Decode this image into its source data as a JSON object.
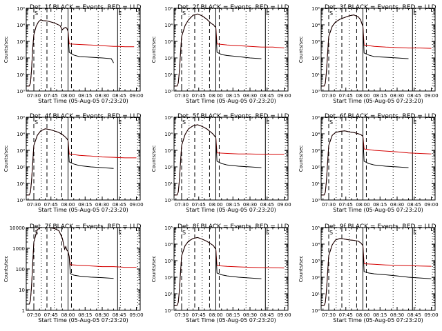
{
  "colors": {
    "events": "#000000",
    "lld": "#d40000",
    "axis": "#000000",
    "background": "#ffffff"
  },
  "common": {
    "ylabel": "Counts/sec",
    "xlabel": "Start Time (05-Aug-05 07:23:20)",
    "xticks": [
      "07:30",
      "07:45",
      "08:00",
      "08:15",
      "08:30",
      "08:45",
      "09:00"
    ],
    "xtick_minutes": [
      30,
      45,
      60,
      75,
      90,
      105,
      120
    ],
    "xlim_minutes": [
      23.33,
      123.33
    ],
    "marker_glyph": "S",
    "marker_glyph_right": "E",
    "vlines": {
      "dashed": [
        30,
        41.5,
        54.5,
        63
      ],
      "dotted": [
        36.5,
        48,
        86.5,
        106,
        121
      ],
      "solid": [
        60,
        103.5
      ]
    }
  },
  "chart_data": [
    {
      "type": "line",
      "title": "Det. 1f BLACK = Events, RED = LLD",
      "yscale": "log",
      "ylim": [
        1,
        100000
      ],
      "ytick_labels": [
        "10⁰",
        "10¹",
        "10²",
        "10³",
        "10⁴",
        "10⁵"
      ],
      "series": [
        {
          "name": "Events",
          "x": [
            23.3,
            26,
            27,
            28,
            29,
            30,
            32,
            34,
            36,
            38,
            42,
            48,
            53,
            55,
            56,
            57,
            58,
            59,
            59.5,
            60,
            61,
            65,
            70,
            80,
            90,
            98,
            100
          ],
          "y": [
            2,
            2,
            3,
            20,
            400,
            2500,
            8000,
            15000,
            20000,
            18000,
            17000,
            13000,
            9000,
            5000,
            6000,
            6500,
            7000,
            6000,
            5000,
            4000,
            220,
            150,
            120,
            110,
            100,
            90,
            50
          ]
        },
        {
          "name": "LLD",
          "x": [
            23.3,
            26,
            27,
            28,
            29,
            30,
            32,
            34,
            36,
            38,
            42,
            48,
            53,
            55,
            56,
            57,
            58,
            59,
            59.5,
            60,
            61,
            70,
            80,
            90,
            100,
            105,
            110,
            118
          ],
          "y": [
            2,
            2,
            3,
            20,
            400,
            2500,
            8000,
            15000,
            20000,
            18000,
            17000,
            13000,
            9000,
            5000,
            6000,
            6500,
            7000,
            6000,
            5000,
            4000,
            700,
            650,
            600,
            550,
            500,
            500,
            480,
            480
          ]
        }
      ]
    },
    {
      "type": "line",
      "title": "Det. 2f BLACK = Events, RED = LLD",
      "yscale": "log",
      "ylim": [
        1,
        100000
      ],
      "ytick_labels": [
        "10⁰",
        "10¹",
        "10²",
        "10³",
        "10⁴",
        "10⁵"
      ],
      "series": [
        {
          "name": "Events",
          "x": [
            23.3,
            26,
            27,
            28,
            29,
            30,
            33,
            36,
            40,
            44,
            48,
            52,
            56,
            58,
            59,
            60,
            61,
            65,
            70,
            80,
            90,
            100
          ],
          "y": [
            2,
            2,
            3,
            15,
            200,
            2000,
            9000,
            20000,
            38000,
            45000,
            35000,
            22000,
            12000,
            10000,
            8000,
            7000,
            220,
            160,
            140,
            120,
            100,
            90
          ]
        },
        {
          "name": "LLD",
          "x": [
            23.3,
            26,
            27,
            28,
            29,
            30,
            33,
            36,
            40,
            44,
            48,
            52,
            56,
            58,
            59,
            60,
            61,
            70,
            80,
            90,
            100,
            110,
            120
          ],
          "y": [
            2,
            2,
            3,
            15,
            200,
            2000,
            9000,
            20000,
            38000,
            45000,
            35000,
            22000,
            12000,
            10000,
            8000,
            7000,
            700,
            600,
            550,
            500,
            450,
            450,
            400
          ]
        }
      ]
    },
    {
      "type": "line",
      "title": "Det. 3f BLACK = Events, RED = LLD",
      "yscale": "log",
      "ylim": [
        1,
        100000
      ],
      "ytick_labels": [
        "10⁰",
        "10¹",
        "10²",
        "10³",
        "10⁴",
        "10⁵"
      ],
      "series": [
        {
          "name": "Events",
          "x": [
            23.3,
            26,
            27,
            28,
            29,
            30,
            33,
            36,
            40,
            44,
            48,
            52,
            56,
            58,
            59,
            60,
            61,
            65,
            70,
            80,
            90,
            100
          ],
          "y": [
            2,
            2,
            3,
            15,
            200,
            2000,
            8000,
            15000,
            22000,
            28000,
            35000,
            40000,
            30000,
            20000,
            12000,
            8000,
            200,
            150,
            120,
            110,
            100,
            90
          ]
        },
        {
          "name": "LLD",
          "x": [
            23.3,
            26,
            27,
            28,
            29,
            30,
            33,
            36,
            40,
            44,
            48,
            52,
            56,
            58,
            59,
            60,
            61,
            70,
            80,
            90,
            100,
            110,
            120
          ],
          "y": [
            2,
            2,
            3,
            15,
            200,
            2000,
            8000,
            15000,
            22000,
            28000,
            35000,
            40000,
            30000,
            20000,
            12000,
            8000,
            600,
            500,
            450,
            420,
            400,
            400,
            380
          ]
        }
      ]
    },
    {
      "type": "line",
      "title": "Det. 4f BLACK = Events, RED = LLD",
      "yscale": "log",
      "ylim": [
        1,
        100000
      ],
      "ytick_labels": [
        "10⁰",
        "10¹",
        "10²",
        "10³",
        "10⁴",
        "10⁵"
      ],
      "series": [
        {
          "name": "Events",
          "x": [
            23.3,
            26,
            27,
            28,
            29,
            30,
            33,
            36,
            40,
            44,
            48,
            52,
            56,
            58,
            59,
            60,
            61,
            65,
            70,
            80,
            90,
            100
          ],
          "y": [
            2,
            2,
            3,
            15,
            200,
            2000,
            8000,
            15000,
            20000,
            18000,
            15000,
            12000,
            8000,
            6000,
            5000,
            4000,
            200,
            150,
            120,
            100,
            90,
            80
          ]
        },
        {
          "name": "LLD",
          "x": [
            23.3,
            26,
            27,
            28,
            29,
            30,
            33,
            36,
            40,
            44,
            48,
            52,
            56,
            58,
            59,
            60,
            61,
            70,
            80,
            90,
            100,
            110,
            120
          ],
          "y": [
            2,
            2,
            3,
            15,
            200,
            2000,
            8000,
            15000,
            20000,
            18000,
            15000,
            12000,
            8000,
            6000,
            5000,
            4000,
            600,
            500,
            450,
            400,
            380,
            350,
            350
          ]
        }
      ]
    },
    {
      "type": "line",
      "title": "Det. 5f BLACK = Events, RED = LLD",
      "yscale": "log",
      "ylim": [
        1,
        100000
      ],
      "ytick_labels": [
        "10⁰",
        "10¹",
        "10²",
        "10³",
        "10⁴",
        "10⁵"
      ],
      "series": [
        {
          "name": "Events",
          "x": [
            23.3,
            26,
            27,
            28,
            29,
            30,
            33,
            36,
            40,
            44,
            48,
            52,
            56,
            58,
            59,
            60,
            61,
            65,
            70,
            80,
            90,
            100
          ],
          "y": [
            2,
            2,
            3,
            15,
            200,
            2000,
            9000,
            20000,
            30000,
            35000,
            28000,
            20000,
            12000,
            9000,
            7000,
            6000,
            220,
            160,
            130,
            110,
            100,
            90
          ]
        },
        {
          "name": "LLD",
          "x": [
            23.3,
            26,
            27,
            28,
            29,
            30,
            33,
            36,
            40,
            44,
            48,
            52,
            56,
            58,
            59,
            60,
            61,
            70,
            80,
            90,
            100,
            110,
            120
          ],
          "y": [
            2,
            2,
            3,
            15,
            200,
            2000,
            9000,
            20000,
            30000,
            35000,
            28000,
            20000,
            12000,
            9000,
            7000,
            6000,
            700,
            650,
            600,
            600,
            580,
            560,
            560
          ]
        }
      ]
    },
    {
      "type": "line",
      "title": "Det. 6f BLACK = Events, RED = LLD",
      "yscale": "log",
      "ylim": [
        1,
        100000
      ],
      "ytick_labels": [
        "10⁰",
        "10¹",
        "10²",
        "10³",
        "10⁴",
        "10⁵"
      ],
      "series": [
        {
          "name": "Events",
          "x": [
            23.3,
            26,
            27,
            28,
            29,
            30,
            33,
            36,
            40,
            44,
            48,
            52,
            56,
            58,
            59,
            60,
            61,
            65,
            70,
            80,
            90,
            100
          ],
          "y": [
            2,
            2,
            3,
            15,
            200,
            2000,
            8000,
            12000,
            14000,
            15000,
            13000,
            12000,
            10000,
            9000,
            8000,
            7000,
            220,
            160,
            130,
            110,
            100,
            90
          ]
        },
        {
          "name": "LLD",
          "x": [
            23.3,
            26,
            27,
            28,
            29,
            30,
            33,
            36,
            40,
            44,
            48,
            52,
            56,
            58,
            59,
            60,
            61,
            70,
            80,
            90,
            100,
            110,
            120
          ],
          "y": [
            2,
            2,
            3,
            15,
            200,
            2000,
            8000,
            12000,
            14000,
            15000,
            13000,
            12000,
            10000,
            9000,
            8000,
            7000,
            1200,
            1000,
            900,
            800,
            700,
            650,
            600
          ]
        }
      ]
    },
    {
      "type": "line",
      "title": "Det. 7f BLACK = Events, RED = LLD",
      "yscale": "log",
      "ylim": [
        1,
        10000
      ],
      "ytick_labels": [
        "1",
        "10",
        "100",
        "1000",
        "10000"
      ],
      "series": [
        {
          "name": "Events",
          "x": [
            23.3,
            26,
            27,
            28,
            29,
            30,
            33,
            36,
            40,
            44,
            48,
            52,
            55,
            57,
            58,
            59,
            60,
            61,
            62,
            65,
            70,
            80,
            90,
            100
          ],
          "y": [
            2,
            2,
            3,
            15,
            200,
            2000,
            8000,
            10000,
            10000,
            10000,
            9000,
            7000,
            3000,
            900,
            1200,
            800,
            700,
            400,
            60,
            50,
            45,
            40,
            38,
            35
          ]
        },
        {
          "name": "LLD",
          "x": [
            23.3,
            26,
            27,
            28,
            29,
            30,
            33,
            36,
            40,
            44,
            48,
            52,
            55,
            57,
            58,
            59,
            60,
            61,
            62,
            70,
            80,
            90,
            100,
            110,
            120
          ],
          "y": [
            2,
            2,
            3,
            15,
            200,
            2000,
            8000,
            10000,
            10000,
            10000,
            9000,
            7000,
            3000,
            900,
            1200,
            800,
            700,
            400,
            160,
            150,
            140,
            130,
            130,
            120,
            120
          ]
        }
      ]
    },
    {
      "type": "line",
      "title": "Det. 8f BLACK = Events, RED = LLD",
      "yscale": "log",
      "ylim": [
        1,
        100000
      ],
      "ytick_labels": [
        "10⁰",
        "10¹",
        "10²",
        "10³",
        "10⁴",
        "10⁵"
      ],
      "series": [
        {
          "name": "Events",
          "x": [
            23.3,
            26,
            27,
            28,
            29,
            30,
            33,
            36,
            40,
            44,
            48,
            52,
            56,
            58,
            59,
            60,
            61,
            65,
            70,
            80,
            90,
            100
          ],
          "y": [
            2,
            2,
            3,
            15,
            200,
            2000,
            8000,
            15000,
            22000,
            25000,
            20000,
            15000,
            10000,
            8000,
            6000,
            5000,
            180,
            140,
            120,
            100,
            90,
            80
          ]
        },
        {
          "name": "LLD",
          "x": [
            23.3,
            26,
            27,
            28,
            29,
            30,
            33,
            36,
            40,
            44,
            48,
            52,
            56,
            58,
            59,
            60,
            61,
            70,
            80,
            90,
            100,
            110,
            120
          ],
          "y": [
            2,
            2,
            3,
            15,
            200,
            2000,
            8000,
            15000,
            22000,
            25000,
            20000,
            15000,
            10000,
            8000,
            6000,
            5000,
            500,
            450,
            420,
            400,
            380,
            370,
            360
          ]
        }
      ]
    },
    {
      "type": "line",
      "title": "Det. 9f BLACK = Events, RED = LLD",
      "yscale": "log",
      "ylim": [
        1,
        100000
      ],
      "ytick_labels": [
        "10⁰",
        "10¹",
        "10²",
        "10³",
        "10⁴",
        "10⁵"
      ],
      "series": [
        {
          "name": "Events",
          "x": [
            23.3,
            26,
            27,
            28,
            29,
            30,
            33,
            36,
            40,
            44,
            48,
            52,
            56,
            58,
            59,
            60,
            61,
            65,
            70,
            80,
            90,
            100,
            110,
            120
          ],
          "y": [
            2,
            2,
            3,
            15,
            200,
            2000,
            9000,
            18000,
            22000,
            20000,
            18000,
            17000,
            15000,
            12000,
            10000,
            8000,
            220,
            180,
            160,
            140,
            120,
            100,
            90,
            80
          ]
        },
        {
          "name": "LLD",
          "x": [
            23.3,
            26,
            27,
            28,
            29,
            30,
            33,
            36,
            40,
            44,
            48,
            52,
            56,
            58,
            59,
            60,
            61,
            70,
            80,
            90,
            100,
            110,
            120
          ],
          "y": [
            2,
            2,
            3,
            15,
            200,
            2000,
            9000,
            18000,
            22000,
            20000,
            18000,
            17000,
            15000,
            12000,
            10000,
            8000,
            650,
            600,
            550,
            520,
            500,
            480,
            460
          ]
        }
      ]
    }
  ]
}
